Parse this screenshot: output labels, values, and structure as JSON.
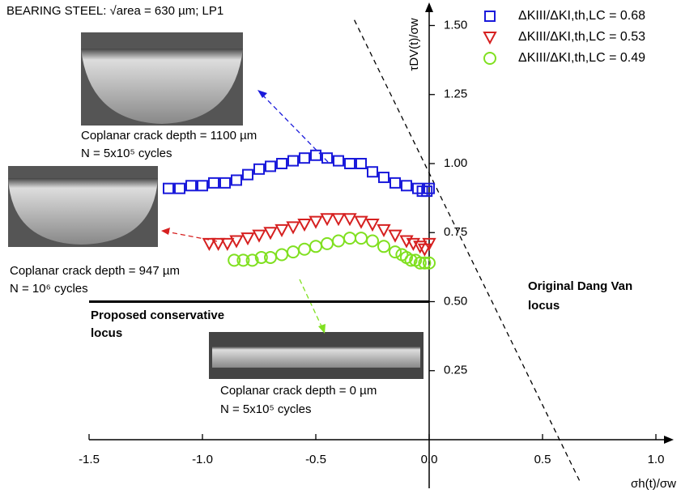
{
  "chart_data": {
    "type": "scatter",
    "title": "BEARING STEEL: √area = 630 µm; LP1",
    "x_label": "σh(t)/σw",
    "y_label": "τDV(t)/σw",
    "xlim": [
      -1.5,
      1.05
    ],
    "ylim": [
      0,
      1.56
    ],
    "xticks": [
      -1.5,
      {
        "value": -1.0,
        "label": "-1.0"
      },
      -0.5,
      {
        "value": 0.0,
        "label": "0.0"
      },
      0.5,
      {
        "value": 1.0,
        "label": "1.0"
      }
    ],
    "yticks": [
      0.25,
      {
        "value": 0.5,
        "label": "0.50"
      },
      0.75,
      {
        "value": 1.0,
        "label": "1.00"
      },
      1.25,
      {
        "value": 1.5,
        "label": "1.50"
      }
    ],
    "legend": "top-right",
    "series": [
      {
        "name": "ΔKIII/ΔKI,th,LC = 0.68",
        "color": "#1a1adb",
        "marker": "square",
        "x": [
          -1.15,
          -1.1,
          -1.05,
          -1.0,
          -0.95,
          -0.9,
          -0.85,
          -0.8,
          -0.75,
          -0.7,
          -0.65,
          -0.6,
          -0.55,
          -0.5,
          -0.45,
          -0.4,
          -0.35,
          -0.3,
          -0.25,
          -0.2,
          -0.15,
          -0.1,
          -0.05,
          -0.03,
          -0.01,
          0.0
        ],
        "values": [
          0.91,
          0.91,
          0.92,
          0.92,
          0.93,
          0.93,
          0.94,
          0.96,
          0.98,
          0.99,
          1.0,
          1.01,
          1.02,
          1.03,
          1.02,
          1.01,
          1.0,
          1.0,
          0.97,
          0.95,
          0.93,
          0.92,
          0.91,
          0.9,
          0.9,
          0.91
        ]
      },
      {
        "name": "ΔKIII/ΔKI,th,LC = 0.53",
        "color": "#d62020",
        "marker": "triangle",
        "x": [
          -0.97,
          -0.93,
          -0.89,
          -0.85,
          -0.8,
          -0.75,
          -0.7,
          -0.65,
          -0.6,
          -0.55,
          -0.5,
          -0.45,
          -0.4,
          -0.35,
          -0.3,
          -0.25,
          -0.2,
          -0.15,
          -0.1,
          -0.07,
          -0.04,
          -0.02,
          0.0
        ],
        "values": [
          0.71,
          0.71,
          0.71,
          0.72,
          0.73,
          0.74,
          0.75,
          0.76,
          0.77,
          0.78,
          0.79,
          0.8,
          0.8,
          0.8,
          0.79,
          0.78,
          0.76,
          0.74,
          0.72,
          0.71,
          0.7,
          0.69,
          0.71
        ]
      },
      {
        "name": "ΔKIII/ΔKI,th,LC = 0.49",
        "color": "#80e020",
        "marker": "circle",
        "x": [
          -0.86,
          -0.82,
          -0.78,
          -0.74,
          -0.7,
          -0.65,
          -0.6,
          -0.55,
          -0.5,
          -0.45,
          -0.4,
          -0.35,
          -0.3,
          -0.25,
          -0.2,
          -0.15,
          -0.12,
          -0.1,
          -0.08,
          -0.06,
          -0.04,
          -0.02,
          0.0
        ],
        "values": [
          0.65,
          0.65,
          0.65,
          0.66,
          0.66,
          0.67,
          0.68,
          0.69,
          0.7,
          0.71,
          0.72,
          0.73,
          0.73,
          0.72,
          0.7,
          0.68,
          0.67,
          0.66,
          0.65,
          0.65,
          0.64,
          0.64,
          0.64
        ]
      }
    ],
    "reference_lines": [
      {
        "style": "dashed",
        "color": "#000000",
        "x": [
          -0.33,
          0.67
        ],
        "values": [
          1.52,
          -0.16
        ]
      },
      {
        "style": "solid",
        "color": "#000000",
        "x": [
          -1.5,
          0.0
        ],
        "values": [
          0.5,
          0.5
        ]
      }
    ],
    "annotations": [
      "Coplanar crack depth = 1100 µm",
      "N = 5x10⁵ cycles",
      "Coplanar crack depth = 947 µm",
      "N = 10⁶ cycles",
      "Proposed conservative",
      "locus",
      "Coplanar crack depth = 0 µm",
      "N = 5x10⁵ cycles",
      "Original Dang Van",
      "locus"
    ]
  }
}
